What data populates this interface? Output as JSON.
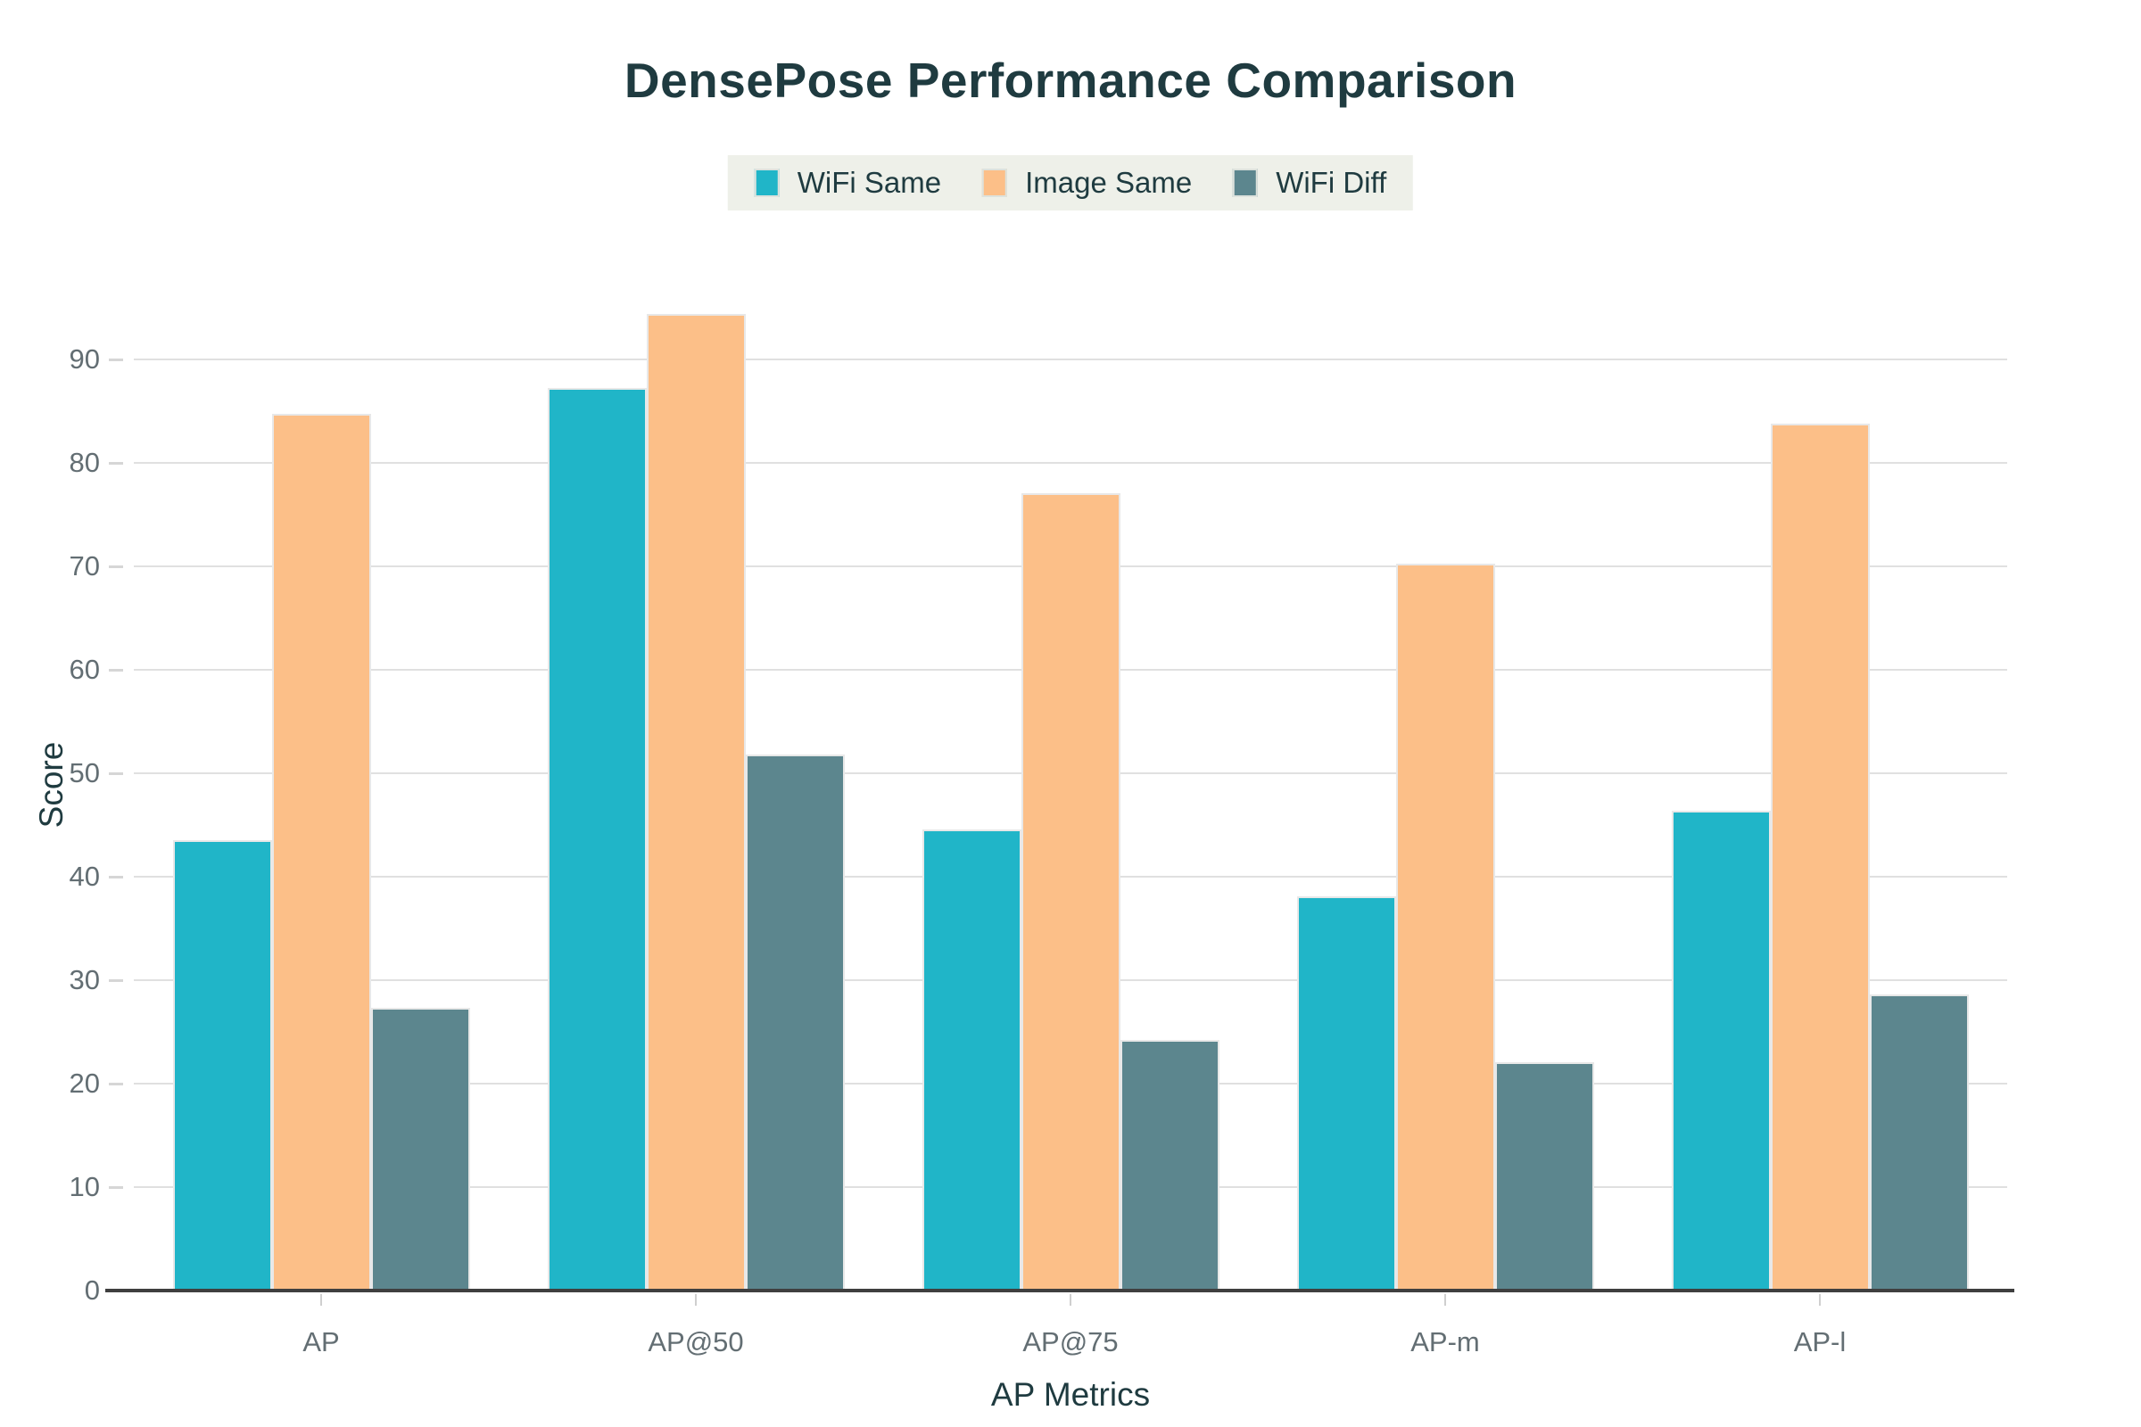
{
  "theme": {
    "text": "#1f3b40",
    "tick_text": "#636e73",
    "grid": "#e0e0e0",
    "axis_line": "#3f3f3f",
    "legend_bg": "#eef0e9",
    "bar_stroke": "#e8e8e8",
    "tick_mark": "#cfcfcf"
  },
  "chart_data": {
    "type": "bar",
    "title": "DensePose Performance Comparison",
    "xlabel": "AP Metrics",
    "ylabel": "Score",
    "categories": [
      "AP",
      "AP@50",
      "AP@75",
      "AP-m",
      "AP-l"
    ],
    "series": [
      {
        "name": "WiFi Same",
        "color": "#20b5c8",
        "values": [
          43.5,
          87.2,
          44.6,
          38.1,
          46.4
        ]
      },
      {
        "name": "Image Same",
        "color": "#fcbf88",
        "values": [
          84.7,
          94.4,
          77.1,
          70.3,
          83.8
        ]
      },
      {
        "name": "WiFi Diff",
        "color": "#5c868e",
        "values": [
          27.3,
          51.8,
          24.2,
          22.1,
          28.6
        ]
      }
    ],
    "ylim": [
      0,
      100
    ],
    "yticks": [
      0,
      10,
      20,
      30,
      40,
      50,
      60,
      70,
      80,
      90
    ],
    "grid": true,
    "legend_position": "top-center"
  }
}
